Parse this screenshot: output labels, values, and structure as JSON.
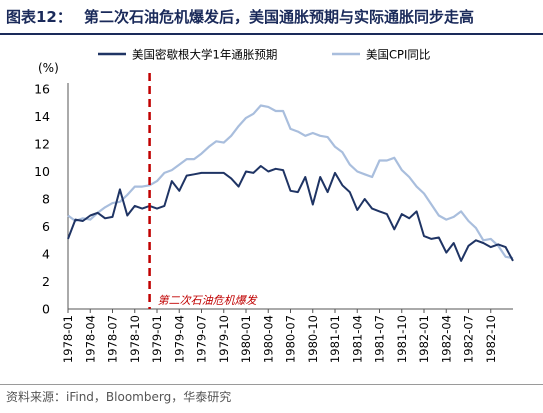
{
  "figure": {
    "label": "图表12：",
    "title": "第二次石油危机爆发后，美国通胀预期与实际通胀同步走高",
    "source": "资料来源：iFind，Bloomberg，华泰研究"
  },
  "colors": {
    "title": "#1a2a5a",
    "series_dark": "#1f3464",
    "series_light": "#a9bedd",
    "event_line": "#c00000"
  },
  "chart_data": {
    "type": "line",
    "ylabel": "(%)",
    "ylim": [
      0,
      16
    ],
    "yticks": [
      0,
      2,
      4,
      6,
      8,
      10,
      12,
      14,
      16
    ],
    "x_ticklabels": [
      "1978-01",
      "1978-04",
      "1978-07",
      "1978-10",
      "1979-01",
      "1979-04",
      "1979-07",
      "1979-10",
      "1980-01",
      "1980-04",
      "1980-07",
      "1980-10",
      "1981-01",
      "1981-04",
      "1981-07",
      "1981-10",
      "1982-01",
      "1982-04",
      "1982-07",
      "1982-10"
    ],
    "x_start": "1978-01",
    "x_end": "1983-01",
    "legend_position": "top",
    "grid": false,
    "event": {
      "x": "1978-12",
      "label": "第二次石油危机爆发"
    },
    "series": [
      {
        "name": "美国密歇根大学1年通胀预期",
        "color": "#1f3464",
        "x": [
          "1978-01",
          "1978-02",
          "1978-03",
          "1978-04",
          "1978-05",
          "1978-06",
          "1978-07",
          "1978-08",
          "1978-09",
          "1978-10",
          "1978-11",
          "1978-12",
          "1979-01",
          "1979-02",
          "1979-03",
          "1979-04",
          "1979-05",
          "1979-06",
          "1979-07",
          "1979-08",
          "1979-09",
          "1979-10",
          "1979-11",
          "1979-12",
          "1980-01",
          "1980-02",
          "1980-03",
          "1980-04",
          "1980-05",
          "1980-06",
          "1980-07",
          "1980-08",
          "1980-09",
          "1980-10",
          "1980-11",
          "1980-12",
          "1981-01",
          "1981-02",
          "1981-03",
          "1981-04",
          "1981-05",
          "1981-06",
          "1981-07",
          "1981-08",
          "1981-09",
          "1981-10",
          "1981-11",
          "1981-12",
          "1982-01",
          "1982-02",
          "1982-03",
          "1982-04",
          "1982-05",
          "1982-06",
          "1982-07",
          "1982-08",
          "1982-09",
          "1982-10",
          "1982-11",
          "1982-12",
          "1983-01"
        ],
        "values": [
          5.1,
          6.5,
          6.4,
          6.8,
          7.0,
          6.6,
          6.7,
          8.7,
          6.8,
          7.5,
          7.3,
          7.5,
          7.3,
          7.5,
          9.3,
          8.6,
          9.7,
          9.8,
          9.9,
          9.9,
          9.9,
          9.9,
          9.5,
          8.9,
          10.0,
          9.9,
          10.4,
          10.0,
          10.2,
          10.1,
          8.6,
          8.5,
          9.6,
          7.6,
          9.6,
          8.5,
          9.9,
          9.0,
          8.5,
          7.2,
          8.0,
          7.3,
          7.1,
          6.9,
          5.8,
          6.9,
          6.6,
          7.1,
          5.3,
          5.1,
          5.2,
          4.1,
          4.8,
          3.5,
          4.6,
          5.0,
          4.8,
          4.5,
          4.7,
          4.5,
          3.5
        ]
      },
      {
        "name": "美国CPI同比",
        "color": "#a9bedd",
        "x": [
          "1978-01",
          "1978-02",
          "1978-03",
          "1978-04",
          "1978-05",
          "1978-06",
          "1978-07",
          "1978-08",
          "1978-09",
          "1978-10",
          "1978-11",
          "1978-12",
          "1979-01",
          "1979-02",
          "1979-03",
          "1979-04",
          "1979-05",
          "1979-06",
          "1979-07",
          "1979-08",
          "1979-09",
          "1979-10",
          "1979-11",
          "1979-12",
          "1980-01",
          "1980-02",
          "1980-03",
          "1980-04",
          "1980-05",
          "1980-06",
          "1980-07",
          "1980-08",
          "1980-09",
          "1980-10",
          "1980-11",
          "1980-12",
          "1981-01",
          "1981-02",
          "1981-03",
          "1981-04",
          "1981-05",
          "1981-06",
          "1981-07",
          "1981-08",
          "1981-09",
          "1981-10",
          "1981-11",
          "1981-12",
          "1982-01",
          "1982-02",
          "1982-03",
          "1982-04",
          "1982-05",
          "1982-06",
          "1982-07",
          "1982-08",
          "1982-09",
          "1982-10",
          "1982-11",
          "1982-12",
          "1983-01"
        ],
        "values": [
          6.8,
          6.4,
          6.6,
          6.5,
          7.0,
          7.4,
          7.7,
          7.8,
          8.3,
          8.9,
          8.9,
          9.0,
          9.3,
          9.9,
          10.1,
          10.5,
          10.9,
          10.9,
          11.3,
          11.8,
          12.2,
          12.1,
          12.6,
          13.3,
          13.9,
          14.2,
          14.8,
          14.7,
          14.4,
          14.4,
          13.1,
          12.9,
          12.6,
          12.8,
          12.6,
          12.5,
          11.8,
          11.4,
          10.5,
          10.0,
          9.8,
          9.6,
          10.8,
          10.8,
          11.0,
          10.1,
          9.6,
          8.9,
          8.4,
          7.6,
          6.8,
          6.5,
          6.7,
          7.1,
          6.4,
          5.9,
          5.0,
          5.1,
          4.6,
          3.8,
          3.7
        ]
      }
    ]
  }
}
